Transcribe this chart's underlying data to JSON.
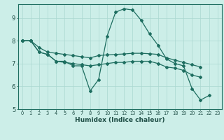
{
  "xlabel": "Humidex (Indice chaleur)",
  "bg_color": "#cceee8",
  "line_color": "#1e6e60",
  "grid_color": "#aad8d0",
  "xlim": [
    -0.5,
    23.5
  ],
  "ylim": [
    5.0,
    9.6
  ],
  "yticks": [
    5,
    6,
    7,
    8,
    9
  ],
  "xticks": [
    0,
    1,
    2,
    3,
    4,
    5,
    6,
    7,
    8,
    9,
    10,
    11,
    12,
    13,
    14,
    15,
    16,
    17,
    18,
    19,
    20,
    21,
    22,
    23
  ],
  "series1_y": [
    8.0,
    8.0,
    7.5,
    7.4,
    7.1,
    7.1,
    6.9,
    6.9,
    5.8,
    6.3,
    8.2,
    9.25,
    9.4,
    9.35,
    8.9,
    8.3,
    7.8,
    7.2,
    7.0,
    6.9,
    5.9,
    5.4,
    5.6,
    null
  ],
  "series2_y": [
    8.0,
    8.0,
    null,
    null,
    null,
    null,
    null,
    null,
    null,
    null,
    null,
    null,
    null,
    null,
    null,
    null,
    null,
    null,
    null,
    null,
    null,
    null,
    null,
    null
  ],
  "series3_y": [
    8.0,
    8.0,
    7.7,
    7.5,
    7.45,
    7.4,
    7.35,
    7.3,
    7.25,
    7.35,
    7.38,
    7.4,
    7.42,
    7.45,
    7.45,
    7.43,
    7.4,
    7.25,
    7.15,
    7.05,
    6.95,
    6.85,
    null,
    null
  ],
  "series4_y": [
    8.0,
    8.0,
    7.5,
    7.4,
    7.1,
    7.05,
    7.0,
    6.95,
    6.9,
    6.95,
    7.0,
    7.05,
    7.05,
    7.1,
    7.1,
    7.1,
    7.0,
    6.85,
    6.8,
    6.7,
    6.5,
    6.4,
    null,
    null
  ]
}
